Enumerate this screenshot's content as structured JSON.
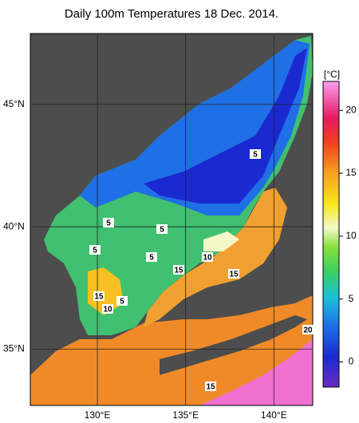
{
  "title": "Daily 100m Temperatures 18 Dec. 2014.",
  "map": {
    "type": "map",
    "xlim": [
      126.2,
      142.2
    ],
    "ylim": [
      32.7,
      47.9
    ],
    "xticks": [
      {
        "value": 130,
        "label": "130°E"
      },
      {
        "value": 135,
        "label": "135°E"
      },
      {
        "value": 140,
        "label": "140°E"
      }
    ],
    "yticks": [
      {
        "value": 35,
        "label": "35°N"
      },
      {
        "value": 40,
        "label": "40°N"
      },
      {
        "value": 45,
        "label": "45°N"
      }
    ],
    "grid": true
  },
  "colorbar": {
    "unit": "[°C]",
    "lim": [
      -2,
      22.3
    ],
    "ticks": [
      0,
      5,
      10,
      15,
      20
    ]
  },
  "contour_labels": [
    "5",
    "5",
    "5",
    "5",
    "5",
    "10",
    "15",
    "15",
    "15",
    "5",
    "10",
    "20",
    "15"
  ]
}
